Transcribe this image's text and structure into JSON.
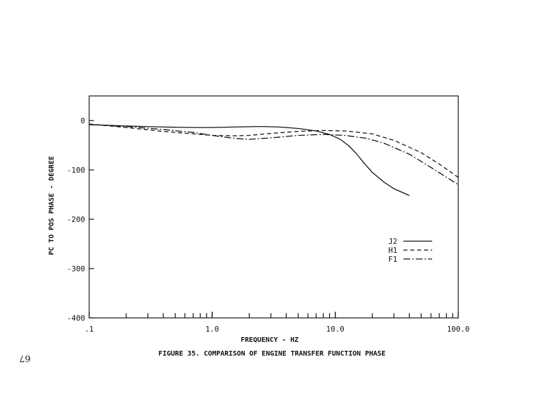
{
  "caption": "FIGURE 35.  COMPARISON OF ENGINE TRANSFER FUNCTION PHASE",
  "page_number": "67",
  "chart_data": {
    "type": "line",
    "xlabel": "FREQUENCY - HZ",
    "ylabel": "PC TO POS  PHASE - DEGREE",
    "x_scale": "log",
    "xlim": [
      0.1,
      100
    ],
    "ylim": [
      -400,
      50
    ],
    "x_ticks": [
      {
        "value": 0.1,
        "label": ".1"
      },
      {
        "value": 1,
        "label": "1.0"
      },
      {
        "value": 10,
        "label": "10.0"
      },
      {
        "value": 100,
        "label": "100.0"
      }
    ],
    "y_ticks": [
      {
        "value": 0,
        "label": "0"
      },
      {
        "value": -100,
        "label": "-100"
      },
      {
        "value": -200,
        "label": "-200"
      },
      {
        "value": -300,
        "label": "-300"
      },
      {
        "value": -400,
        "label": "-400"
      }
    ],
    "legend_position": "lower-right",
    "series": [
      {
        "name": "J2",
        "style": "solid",
        "x": [
          0.1,
          0.2,
          0.4,
          0.7,
          1.0,
          1.5,
          2.5,
          3.5,
          5,
          7,
          9,
          11,
          13,
          15,
          17,
          20,
          25,
          30,
          40
        ],
        "y": [
          -8,
          -11,
          -13,
          -14,
          -14,
          -13,
          -12,
          -13,
          -16,
          -21,
          -28,
          -38,
          -52,
          -68,
          -85,
          -105,
          -125,
          -138,
          -152
        ]
      },
      {
        "name": "H1",
        "style": "dashed",
        "x": [
          0.1,
          0.2,
          0.4,
          0.7,
          1.0,
          1.5,
          2.0,
          3.0,
          5,
          8,
          12,
          20,
          30,
          50,
          70,
          100
        ],
        "y": [
          -7,
          -14,
          -22,
          -27,
          -30,
          -31,
          -30,
          -26,
          -22,
          -20,
          -21,
          -27,
          -40,
          -65,
          -88,
          -115
        ]
      },
      {
        "name": "F1",
        "style": "dashdot",
        "x": [
          0.1,
          0.2,
          0.4,
          0.7,
          1.0,
          1.5,
          2.0,
          3.0,
          5,
          8,
          12,
          18,
          25,
          40,
          60,
          100
        ],
        "y": [
          -8,
          -12,
          -18,
          -24,
          -30,
          -36,
          -38,
          -35,
          -30,
          -28,
          -30,
          -36,
          -46,
          -68,
          -95,
          -130
        ]
      }
    ]
  }
}
